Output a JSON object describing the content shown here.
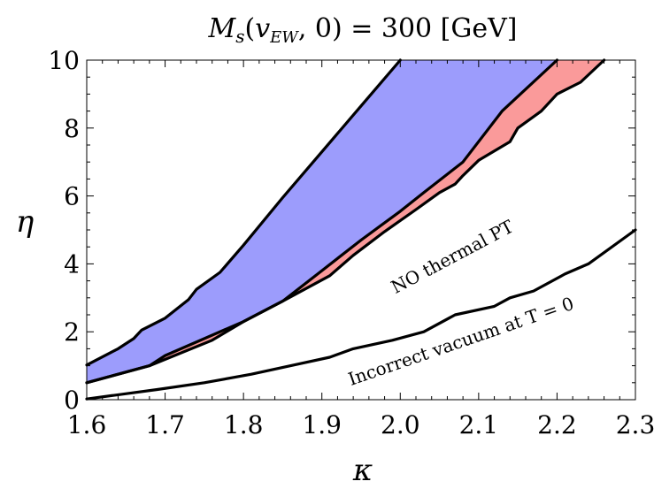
{
  "chart_data": {
    "type": "area",
    "title": "M_s(v_EW, 0) = 300 [GeV]",
    "xlabel": "κ",
    "ylabel": "η",
    "xlim": [
      1.6,
      2.3
    ],
    "ylim": [
      0,
      10
    ],
    "x_ticks": [
      "1.6",
      "1.7",
      "1.8",
      "1.9",
      "2.0",
      "2.1",
      "2.2",
      "2.3"
    ],
    "y_ticks": [
      "0",
      "2",
      "4",
      "6",
      "8",
      "10"
    ],
    "grid": false,
    "colors": {
      "blue_region": "#9c9cfc",
      "red_region": "#fa9a9a",
      "line": "#000000"
    },
    "regions": [
      {
        "fill": "blue_region",
        "upper": [
          [
            1.6,
            1.02
          ],
          [
            1.64,
            1.5
          ],
          [
            1.66,
            1.8
          ],
          [
            1.67,
            2.05
          ],
          [
            1.7,
            2.4
          ],
          [
            1.73,
            2.95
          ],
          [
            1.74,
            3.25
          ],
          [
            1.77,
            3.75
          ],
          [
            1.8,
            4.55
          ],
          [
            1.85,
            5.95
          ],
          [
            1.9,
            7.3
          ],
          [
            1.95,
            8.65
          ],
          [
            2.0,
            10.0
          ]
        ],
        "lower": [
          [
            1.6,
            0.5
          ],
          [
            1.68,
            1.0
          ],
          [
            1.7,
            1.3
          ],
          [
            1.8,
            2.3
          ],
          [
            1.85,
            2.9
          ],
          [
            1.9,
            3.8
          ],
          [
            1.95,
            4.7
          ],
          [
            2.0,
            5.55
          ],
          [
            2.03,
            6.1
          ],
          [
            2.08,
            7.0
          ],
          [
            2.13,
            8.5
          ],
          [
            2.2,
            10.0
          ]
        ]
      },
      {
        "fill": "red_region",
        "upper": [
          [
            1.68,
            1.0
          ],
          [
            1.7,
            1.3
          ],
          [
            1.8,
            2.3
          ],
          [
            1.85,
            2.9
          ],
          [
            1.9,
            3.8
          ],
          [
            1.95,
            4.7
          ],
          [
            2.0,
            5.55
          ],
          [
            2.03,
            6.1
          ],
          [
            2.08,
            7.0
          ],
          [
            2.13,
            8.5
          ],
          [
            2.2,
            10.0
          ],
          [
            2.3,
            10.0
          ]
        ],
        "lower": [
          [
            1.68,
            1.0
          ],
          [
            1.76,
            1.75
          ],
          [
            1.8,
            2.3
          ],
          [
            1.85,
            2.9
          ],
          [
            1.91,
            3.65
          ],
          [
            1.94,
            4.25
          ],
          [
            1.98,
            4.95
          ],
          [
            2.02,
            5.6
          ],
          [
            2.05,
            6.1
          ],
          [
            2.07,
            6.35
          ],
          [
            2.08,
            6.6
          ],
          [
            2.1,
            7.05
          ],
          [
            2.14,
            7.6
          ],
          [
            2.15,
            8.0
          ],
          [
            2.18,
            8.5
          ],
          [
            2.2,
            9.0
          ],
          [
            2.23,
            9.35
          ],
          [
            2.26,
            10.0
          ],
          [
            2.3,
            10.0
          ]
        ]
      }
    ],
    "series": [
      {
        "values": [
          [
            1.6,
            1.02
          ],
          [
            1.64,
            1.5
          ],
          [
            1.66,
            1.8
          ],
          [
            1.67,
            2.05
          ],
          [
            1.7,
            2.4
          ],
          [
            1.73,
            2.95
          ],
          [
            1.74,
            3.25
          ],
          [
            1.77,
            3.75
          ],
          [
            1.8,
            4.55
          ],
          [
            1.85,
            5.95
          ],
          [
            1.9,
            7.3
          ],
          [
            1.95,
            8.65
          ],
          [
            2.0,
            10.0
          ]
        ]
      },
      {
        "values": [
          [
            1.6,
            0.5
          ],
          [
            1.68,
            1.0
          ],
          [
            1.7,
            1.3
          ],
          [
            1.8,
            2.3
          ],
          [
            1.85,
            2.9
          ],
          [
            1.9,
            3.8
          ],
          [
            1.95,
            4.7
          ],
          [
            2.0,
            5.55
          ],
          [
            2.03,
            6.1
          ],
          [
            2.08,
            7.0
          ],
          [
            2.13,
            8.5
          ],
          [
            2.2,
            10.0
          ]
        ]
      },
      {
        "values": [
          [
            1.6,
            0.5
          ],
          [
            1.68,
            1.0
          ],
          [
            1.76,
            1.75
          ],
          [
            1.8,
            2.3
          ],
          [
            1.85,
            2.9
          ],
          [
            1.91,
            3.65
          ],
          [
            1.94,
            4.25
          ],
          [
            1.98,
            4.95
          ],
          [
            2.02,
            5.6
          ],
          [
            2.05,
            6.1
          ],
          [
            2.07,
            6.35
          ],
          [
            2.08,
            6.6
          ],
          [
            2.1,
            7.05
          ],
          [
            2.14,
            7.6
          ],
          [
            2.15,
            8.0
          ],
          [
            2.18,
            8.5
          ],
          [
            2.2,
            9.0
          ],
          [
            2.23,
            9.35
          ],
          [
            2.26,
            10.0
          ]
        ]
      },
      {
        "values": [
          [
            1.6,
            0.02
          ],
          [
            1.69,
            0.3
          ],
          [
            1.75,
            0.5
          ],
          [
            1.81,
            0.75
          ],
          [
            1.87,
            1.05
          ],
          [
            1.91,
            1.25
          ],
          [
            1.94,
            1.5
          ],
          [
            1.99,
            1.75
          ],
          [
            2.03,
            2.0
          ],
          [
            2.07,
            2.5
          ],
          [
            2.12,
            2.75
          ],
          [
            2.14,
            3.0
          ],
          [
            2.17,
            3.2
          ],
          [
            2.21,
            3.7
          ],
          [
            2.24,
            4.0
          ],
          [
            2.3,
            5.0
          ]
        ]
      }
    ],
    "annotations": [
      {
        "text": "NO thermal PT",
        "x": 2.07,
        "y": 4.05,
        "angle_deg": -28
      },
      {
        "text": "Incorrect vacuum at T = 0",
        "x": 2.08,
        "y": 1.55,
        "angle_deg": -19
      }
    ]
  }
}
